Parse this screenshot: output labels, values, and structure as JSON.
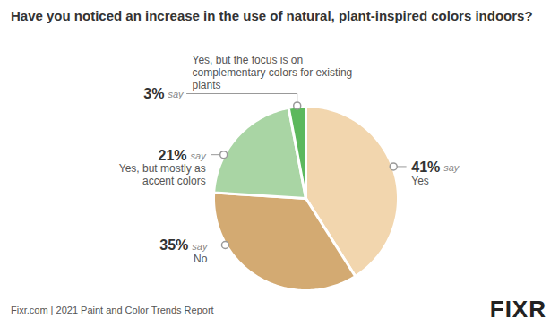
{
  "chart_data": {
    "type": "pie",
    "title": "Have you noticed an increase in the use of natural, plant-inspired colors indoors?",
    "categories": [
      "Yes",
      "No",
      "Yes, but mostly as accent colors",
      "Yes, but the focus is on complementary colors for existing plants"
    ],
    "values": [
      41,
      35,
      21,
      3
    ],
    "value_labels": [
      "41%",
      "35%",
      "21%",
      "3%"
    ],
    "colors": [
      "#f2d6ae",
      "#d3aa72",
      "#a9d5a4",
      "#5cb85c"
    ],
    "data_labels": true,
    "annotations": [
      "say"
    ],
    "caption": "Fixr.com | 2021 Paint and Color Trends Report",
    "logo": "FIXR"
  }
}
